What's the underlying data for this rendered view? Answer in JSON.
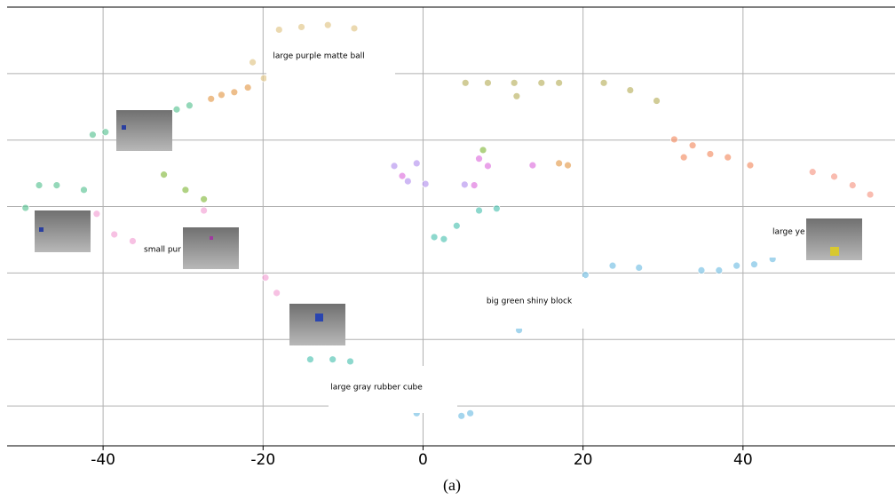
{
  "chart_data": {
    "type": "scatter",
    "xlim": [
      -52,
      59
    ],
    "xticks": [
      -40,
      -20,
      0,
      20,
      40
    ],
    "ylim": [
      -26,
      40
    ],
    "yticks": [
      -20,
      -10,
      0,
      10,
      20,
      30
    ],
    "grid": true,
    "series": [
      {
        "color": "#e3c98f",
        "x": [
          -18,
          -15.2,
          -11.9,
          -8.6,
          -21.3,
          -19.9
        ],
        "y": [
          36.6,
          37,
          37.3,
          36.8,
          31.7,
          29.3
        ]
      },
      {
        "color": "#e6a35a",
        "x": [
          -25.2,
          -23.6,
          -21.9,
          -26.5,
          17,
          18.1
        ],
        "y": [
          26.8,
          27.2,
          27.9,
          26.2,
          16.5,
          16.2
        ]
      },
      {
        "color": "#bdb76b",
        "x": [
          5.3,
          8.1,
          11.4,
          14.8,
          17,
          22.6,
          25.9,
          29.2,
          11.7
        ],
        "y": [
          28.6,
          28.6,
          28.6,
          28.6,
          28.6,
          28.6,
          27.5,
          25.9,
          26.6
        ]
      },
      {
        "color": "#f4956f",
        "x": [
          31.4,
          33.7,
          35.9,
          38.1,
          40.9,
          32.6
        ],
        "y": [
          20.1,
          19.2,
          17.9,
          17.4,
          16.2,
          17.4
        ]
      },
      {
        "color": "#f7a08f",
        "x": [
          48.7,
          51.4,
          53.7,
          55.9
        ],
        "y": [
          15.2,
          14.5,
          13.2,
          11.8
        ]
      },
      {
        "color": "#b99af0",
        "x": [
          -3.6,
          -0.8,
          -1.9,
          0.3,
          5.2
        ],
        "y": [
          16.1,
          16.5,
          13.8,
          13.4,
          13.3
        ]
      },
      {
        "color": "#e07be0",
        "x": [
          7,
          8.1,
          6.4,
          13.7,
          -2.6
        ],
        "y": [
          17.2,
          16.1,
          13.2,
          16.2,
          14.6
        ]
      },
      {
        "color": "#5cc7b8",
        "x": [
          1.4,
          2.6,
          4.2,
          7,
          9.2,
          -14.1,
          -11.3,
          -9.1
        ],
        "y": [
          5.4,
          5.1,
          7.1,
          9.4,
          9.7,
          -13,
          -13,
          -13.3
        ]
      },
      {
        "color": "#7ec3e6",
        "x": [
          20.3,
          23.7,
          27,
          34.8,
          37,
          39.2,
          41.4,
          43.7,
          12,
          4.8,
          5.9,
          -0.8
        ],
        "y": [
          -0.3,
          1.1,
          0.8,
          0.4,
          0.4,
          1.1,
          1.3,
          2.1,
          -8.6,
          -21.5,
          -21.1,
          -21.1
        ]
      },
      {
        "color": "#66c79b",
        "x": [
          -49.7,
          -48,
          -45.8,
          -42.4,
          -41.3,
          -39.7,
          -30.8,
          -29.2
        ],
        "y": [
          9.8,
          13.2,
          13.2,
          12.5,
          20.8,
          21.2,
          24.6,
          25.2
        ]
      },
      {
        "color": "#8fbf4f",
        "x": [
          -32.4,
          -29.7,
          -27.4,
          7.5
        ],
        "y": [
          14.8,
          12.5,
          11.1,
          18.5
        ]
      },
      {
        "color": "#f4a6d7",
        "x": [
          -40.8,
          -38.6,
          -36.3,
          -27.4,
          -19.7,
          -18.3
        ],
        "y": [
          8.9,
          5.8,
          4.8,
          9.4,
          -0.7,
          -3
        ]
      }
    ],
    "annotations": [
      "large purple matte ball",
      "small pur",
      "big green shiny block",
      "large gray rubber cube",
      "large ye"
    ],
    "caption": "(a)"
  }
}
